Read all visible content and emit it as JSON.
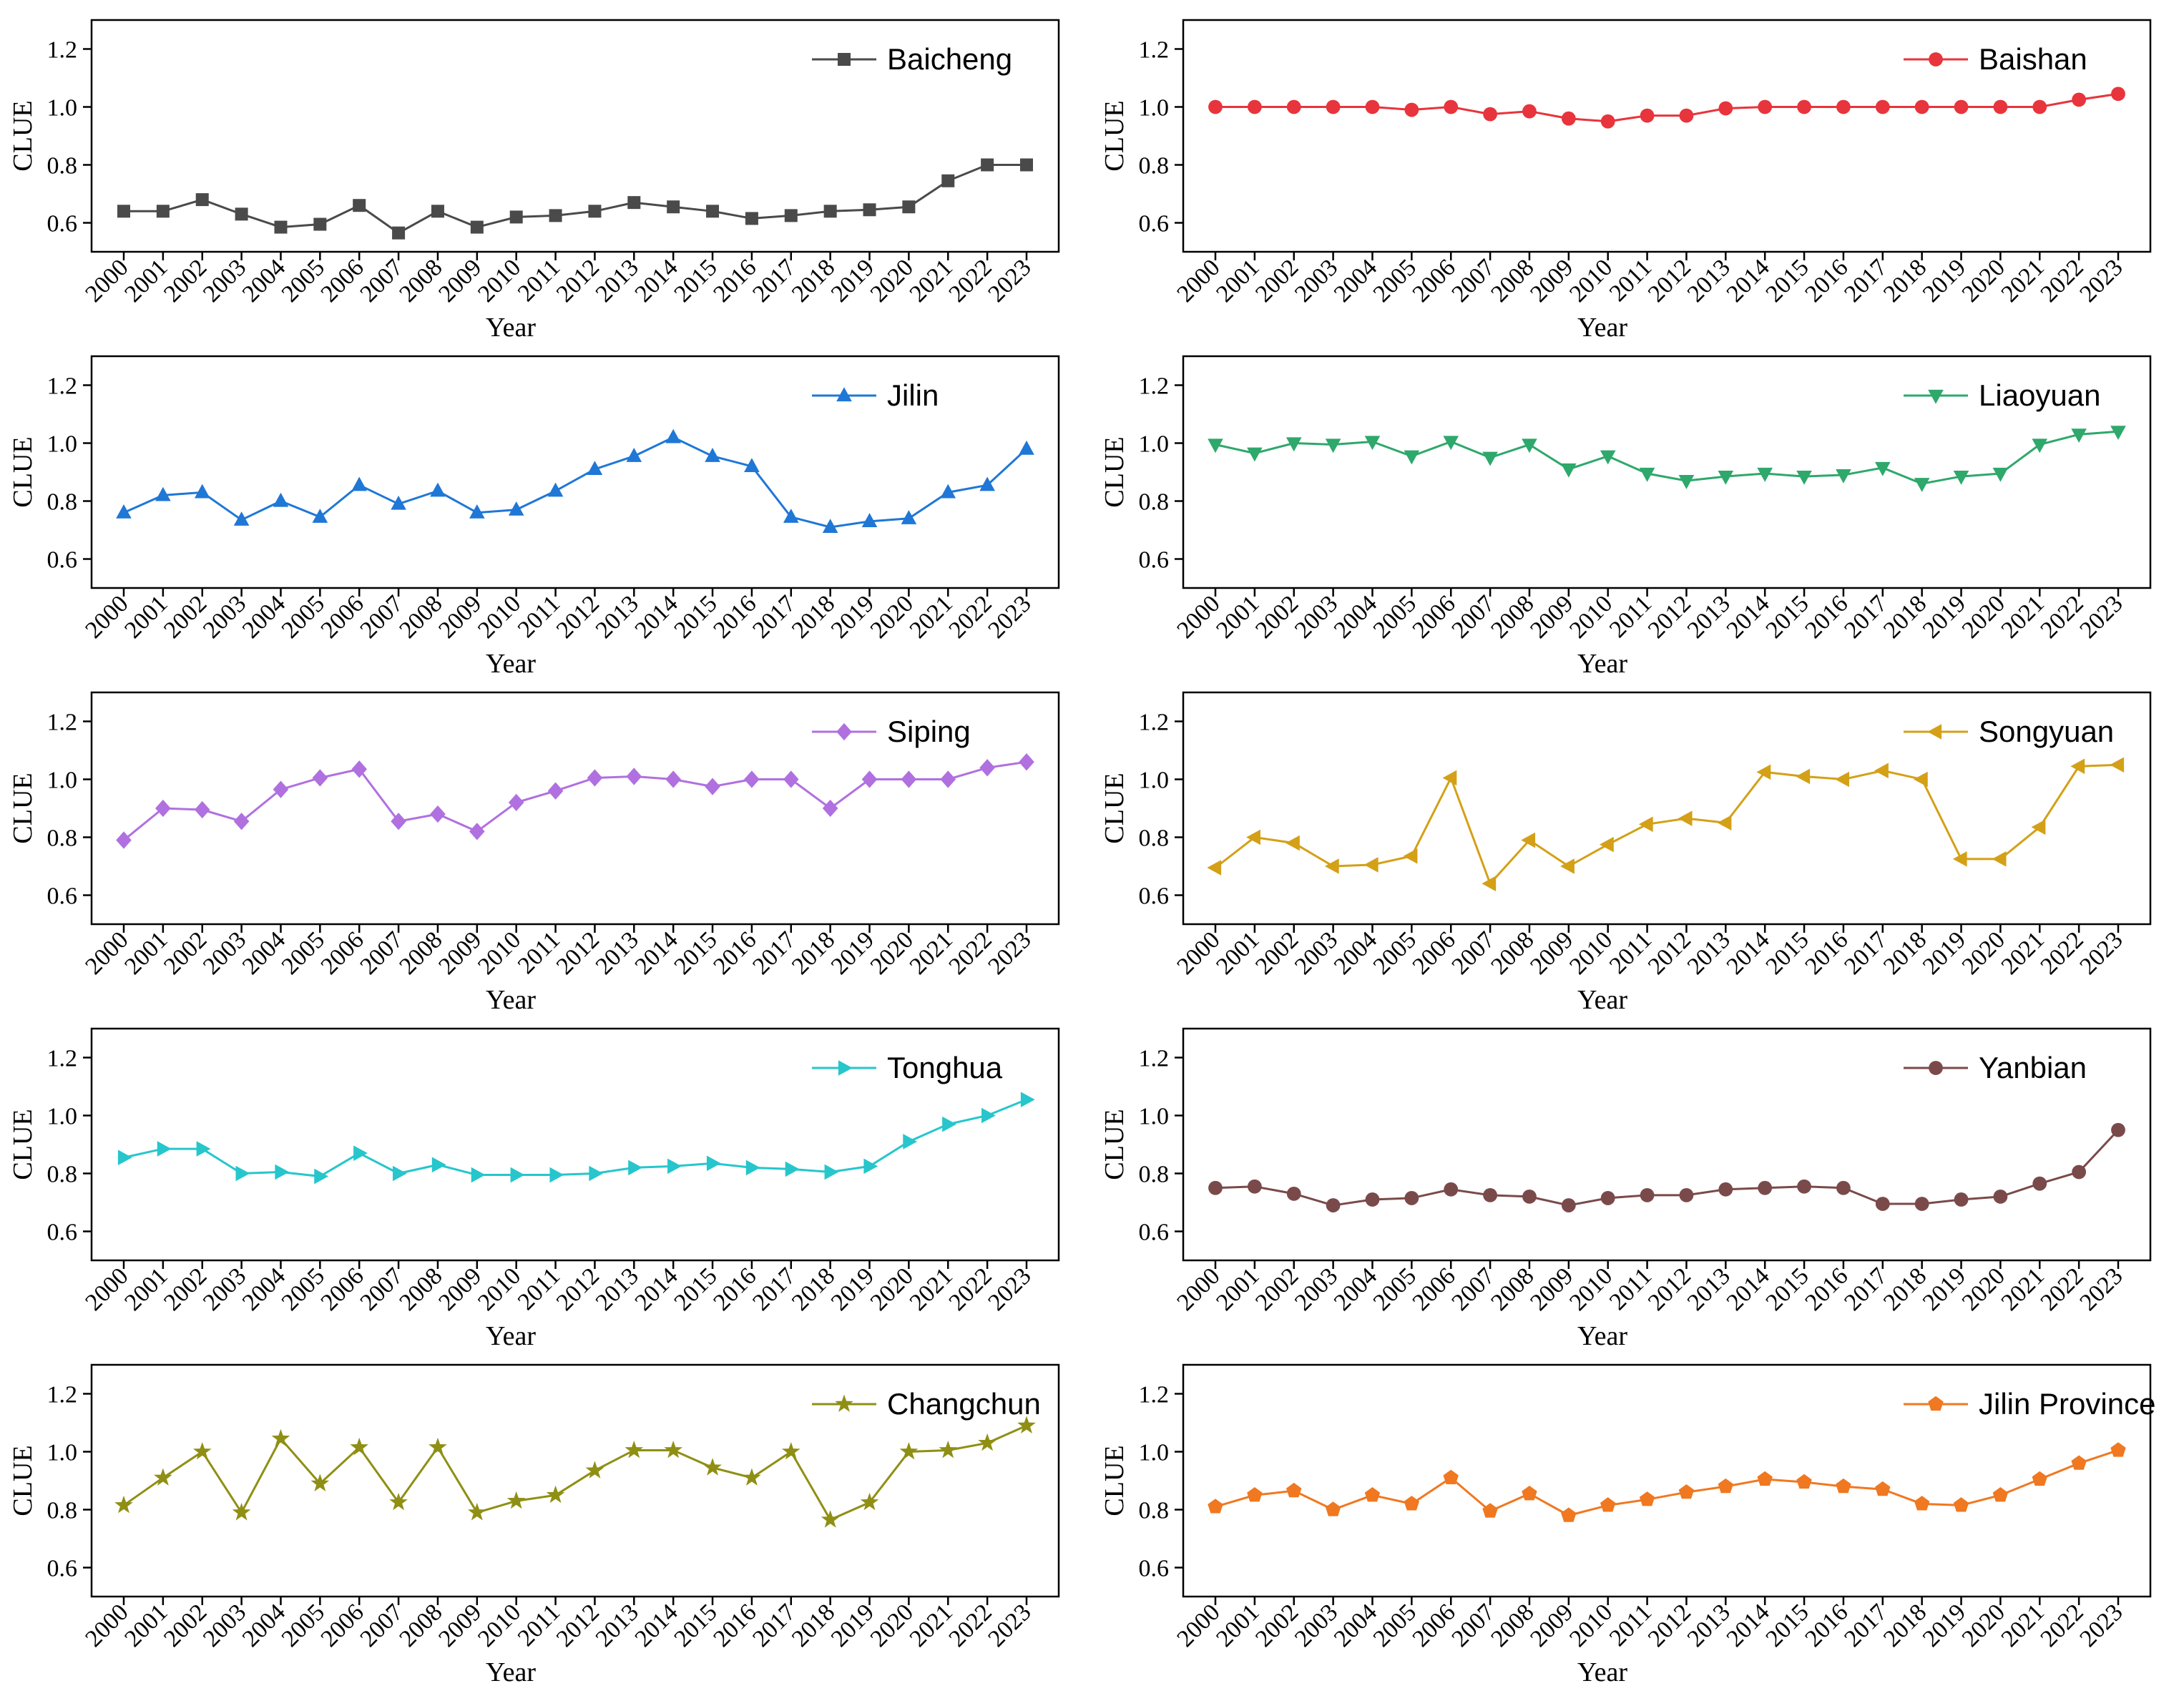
{
  "chart_data": [
    {
      "type": "line",
      "name": "baicheng",
      "series_name": "Baicheng",
      "color": "#4a4a4a",
      "marker": "square",
      "ylabel": "CLUE",
      "xlabel": "Year",
      "ylim": [
        0.5,
        1.3
      ],
      "yticks": [
        "0.6",
        "0.8",
        "1.0",
        "1.2"
      ],
      "x": [
        "2000",
        "2001",
        "2002",
        "2003",
        "2004",
        "2005",
        "2006",
        "2007",
        "2008",
        "2009",
        "2010",
        "2011",
        "2012",
        "2013",
        "2014",
        "2015",
        "2016",
        "2017",
        "2018",
        "2019",
        "2020",
        "2021",
        "2022",
        "2023"
      ],
      "values": [
        0.64,
        0.64,
        0.68,
        0.63,
        0.585,
        0.595,
        0.66,
        0.565,
        0.64,
        0.585,
        0.62,
        0.625,
        0.64,
        0.67,
        0.655,
        0.64,
        0.615,
        0.625,
        0.64,
        0.645,
        0.655,
        0.745,
        0.8,
        0.8
      ]
    },
    {
      "type": "line",
      "name": "baishan",
      "series_name": "Baishan",
      "color": "#e8343c",
      "marker": "circle",
      "ylabel": "CLUE",
      "xlabel": "Year",
      "ylim": [
        0.5,
        1.3
      ],
      "yticks": [
        "0.6",
        "0.8",
        "1.0",
        "1.2"
      ],
      "x": [
        "2000",
        "2001",
        "2002",
        "2003",
        "2004",
        "2005",
        "2006",
        "2007",
        "2008",
        "2009",
        "2010",
        "2011",
        "2012",
        "2013",
        "2014",
        "2015",
        "2016",
        "2017",
        "2018",
        "2019",
        "2020",
        "2021",
        "2022",
        "2023"
      ],
      "values": [
        1.0,
        1.0,
        1.0,
        1.0,
        1.0,
        0.99,
        1.0,
        0.975,
        0.985,
        0.96,
        0.95,
        0.97,
        0.97,
        0.995,
        1.0,
        1.0,
        1.0,
        1.0,
        1.0,
        1.0,
        1.0,
        1.0,
        1.025,
        1.045
      ]
    },
    {
      "type": "line",
      "name": "jilin",
      "series_name": "Jilin",
      "color": "#1f77d6",
      "marker": "triangle-up",
      "ylabel": "CLUE",
      "xlabel": "Year",
      "ylim": [
        0.5,
        1.3
      ],
      "yticks": [
        "0.6",
        "0.8",
        "1.0",
        "1.2"
      ],
      "x": [
        "2000",
        "2001",
        "2002",
        "2003",
        "2004",
        "2005",
        "2006",
        "2007",
        "2008",
        "2009",
        "2010",
        "2011",
        "2012",
        "2013",
        "2014",
        "2015",
        "2016",
        "2017",
        "2018",
        "2019",
        "2020",
        "2021",
        "2022",
        "2023"
      ],
      "values": [
        0.76,
        0.82,
        0.83,
        0.735,
        0.8,
        0.745,
        0.855,
        0.79,
        0.835,
        0.76,
        0.77,
        0.835,
        0.91,
        0.955,
        1.02,
        0.955,
        0.92,
        0.745,
        0.71,
        0.73,
        0.74,
        0.83,
        0.855,
        0.98
      ]
    },
    {
      "type": "line",
      "name": "liaoyuan",
      "series_name": "Liaoyuan",
      "color": "#2ea86b",
      "marker": "triangle-down",
      "ylabel": "CLUE",
      "xlabel": "Year",
      "ylim": [
        0.5,
        1.3
      ],
      "yticks": [
        "0.6",
        "0.8",
        "1.0",
        "1.2"
      ],
      "x": [
        "2000",
        "2001",
        "2002",
        "2003",
        "2004",
        "2005",
        "2006",
        "2007",
        "2008",
        "2009",
        "2010",
        "2011",
        "2012",
        "2013",
        "2014",
        "2015",
        "2016",
        "2017",
        "2018",
        "2019",
        "2020",
        "2021",
        "2022",
        "2023"
      ],
      "values": [
        0.995,
        0.965,
        1.0,
        0.995,
        1.005,
        0.955,
        1.005,
        0.95,
        0.995,
        0.91,
        0.955,
        0.895,
        0.87,
        0.885,
        0.895,
        0.885,
        0.89,
        0.915,
        0.86,
        0.885,
        0.895,
        0.995,
        1.03,
        1.04
      ]
    },
    {
      "type": "line",
      "name": "siping",
      "series_name": "Siping",
      "color": "#b070e0",
      "marker": "diamond",
      "ylabel": "CLUE",
      "xlabel": "Year",
      "ylim": [
        0.5,
        1.3
      ],
      "yticks": [
        "0.6",
        "0.8",
        "1.0",
        "1.2"
      ],
      "x": [
        "2000",
        "2001",
        "2002",
        "2003",
        "2004",
        "2005",
        "2006",
        "2007",
        "2008",
        "2009",
        "2010",
        "2011",
        "2012",
        "2013",
        "2014",
        "2015",
        "2016",
        "2017",
        "2018",
        "2019",
        "2020",
        "2021",
        "2022",
        "2023"
      ],
      "values": [
        0.79,
        0.9,
        0.895,
        0.855,
        0.965,
        1.005,
        1.035,
        0.855,
        0.88,
        0.82,
        0.92,
        0.96,
        1.005,
        1.01,
        1.0,
        0.975,
        1.0,
        1.0,
        0.9,
        1.0,
        1.0,
        1.0,
        1.04,
        1.06
      ]
    },
    {
      "type": "line",
      "name": "songyuan",
      "series_name": "Songyuan",
      "color": "#d4a017",
      "marker": "triangle-left",
      "ylabel": "CLUE",
      "xlabel": "Year",
      "ylim": [
        0.5,
        1.3
      ],
      "yticks": [
        "0.6",
        "0.8",
        "1.0",
        "1.2"
      ],
      "x": [
        "2000",
        "2001",
        "2002",
        "2003",
        "2004",
        "2005",
        "2006",
        "2007",
        "2008",
        "2009",
        "2010",
        "2011",
        "2012",
        "2013",
        "2014",
        "2015",
        "2016",
        "2017",
        "2018",
        "2019",
        "2020",
        "2021",
        "2022",
        "2023"
      ],
      "values": [
        0.695,
        0.8,
        0.78,
        0.7,
        0.705,
        0.735,
        1.005,
        0.64,
        0.79,
        0.7,
        0.775,
        0.845,
        0.865,
        0.85,
        1.025,
        1.01,
        1.0,
        1.03,
        1.0,
        0.725,
        0.725,
        0.835,
        1.045,
        1.05
      ]
    },
    {
      "type": "line",
      "name": "tonghua",
      "series_name": "Tonghua",
      "color": "#26c6cc",
      "marker": "triangle-right",
      "ylabel": "CLUE",
      "xlabel": "Year",
      "ylim": [
        0.5,
        1.3
      ],
      "yticks": [
        "0.6",
        "0.8",
        "1.0",
        "1.2"
      ],
      "x": [
        "2000",
        "2001",
        "2002",
        "2003",
        "2004",
        "2005",
        "2006",
        "2007",
        "2008",
        "2009",
        "2010",
        "2011",
        "2012",
        "2013",
        "2014",
        "2015",
        "2016",
        "2017",
        "2018",
        "2019",
        "2020",
        "2021",
        "2022",
        "2023"
      ],
      "values": [
        0.855,
        0.885,
        0.885,
        0.8,
        0.805,
        0.79,
        0.87,
        0.8,
        0.83,
        0.795,
        0.795,
        0.795,
        0.8,
        0.82,
        0.825,
        0.835,
        0.82,
        0.815,
        0.805,
        0.825,
        0.91,
        0.97,
        1.0,
        1.055
      ]
    },
    {
      "type": "line",
      "name": "yanbian",
      "series_name": "Yanbian",
      "color": "#7a4a4a",
      "marker": "circle",
      "ylabel": "CLUE",
      "xlabel": "Year",
      "ylim": [
        0.5,
        1.3
      ],
      "yticks": [
        "0.6",
        "0.8",
        "1.0",
        "1.2"
      ],
      "x": [
        "2000",
        "2001",
        "2002",
        "2003",
        "2004",
        "2005",
        "2006",
        "2007",
        "2008",
        "2009",
        "2010",
        "2011",
        "2012",
        "2013",
        "2014",
        "2015",
        "2016",
        "2017",
        "2018",
        "2019",
        "2020",
        "2021",
        "2022",
        "2023"
      ],
      "values": [
        0.75,
        0.755,
        0.73,
        0.69,
        0.71,
        0.715,
        0.745,
        0.725,
        0.72,
        0.69,
        0.715,
        0.725,
        0.725,
        0.745,
        0.75,
        0.755,
        0.75,
        0.695,
        0.695,
        0.71,
        0.72,
        0.765,
        0.805,
        0.95
      ]
    },
    {
      "type": "line",
      "name": "changchun",
      "series_name": "Changchun",
      "color": "#8f8f14",
      "marker": "star",
      "ylabel": "CLUE",
      "xlabel": "Year",
      "ylim": [
        0.5,
        1.3
      ],
      "yticks": [
        "0.6",
        "0.8",
        "1.0",
        "1.2"
      ],
      "x": [
        "2000",
        "2001",
        "2002",
        "2003",
        "2004",
        "2005",
        "2006",
        "2007",
        "2008",
        "2009",
        "2010",
        "2011",
        "2012",
        "2013",
        "2014",
        "2015",
        "2016",
        "2017",
        "2018",
        "2019",
        "2020",
        "2021",
        "2022",
        "2023"
      ],
      "values": [
        0.815,
        0.91,
        1.0,
        0.79,
        1.045,
        0.89,
        1.015,
        0.825,
        1.015,
        0.79,
        0.83,
        0.85,
        0.935,
        1.005,
        1.005,
        0.945,
        0.91,
        1.0,
        0.765,
        0.825,
        1.0,
        1.005,
        1.03,
        1.09
      ]
    },
    {
      "type": "line",
      "name": "jilin-province",
      "series_name": "Jilin Province",
      "color": "#f07820",
      "marker": "pentagon",
      "ylabel": "CLUE",
      "xlabel": "Year",
      "ylim": [
        0.5,
        1.3
      ],
      "yticks": [
        "0.6",
        "0.8",
        "1.0",
        "1.2"
      ],
      "x": [
        "2000",
        "2001",
        "2002",
        "2003",
        "2004",
        "2005",
        "2006",
        "2007",
        "2008",
        "2009",
        "2010",
        "2011",
        "2012",
        "2013",
        "2014",
        "2015",
        "2016",
        "2017",
        "2018",
        "2019",
        "2020",
        "2021",
        "2022",
        "2023"
      ],
      "values": [
        0.81,
        0.85,
        0.865,
        0.8,
        0.85,
        0.82,
        0.91,
        0.795,
        0.855,
        0.78,
        0.815,
        0.835,
        0.86,
        0.88,
        0.905,
        0.895,
        0.88,
        0.87,
        0.82,
        0.815,
        0.85,
        0.905,
        0.96,
        1.005
      ]
    }
  ]
}
